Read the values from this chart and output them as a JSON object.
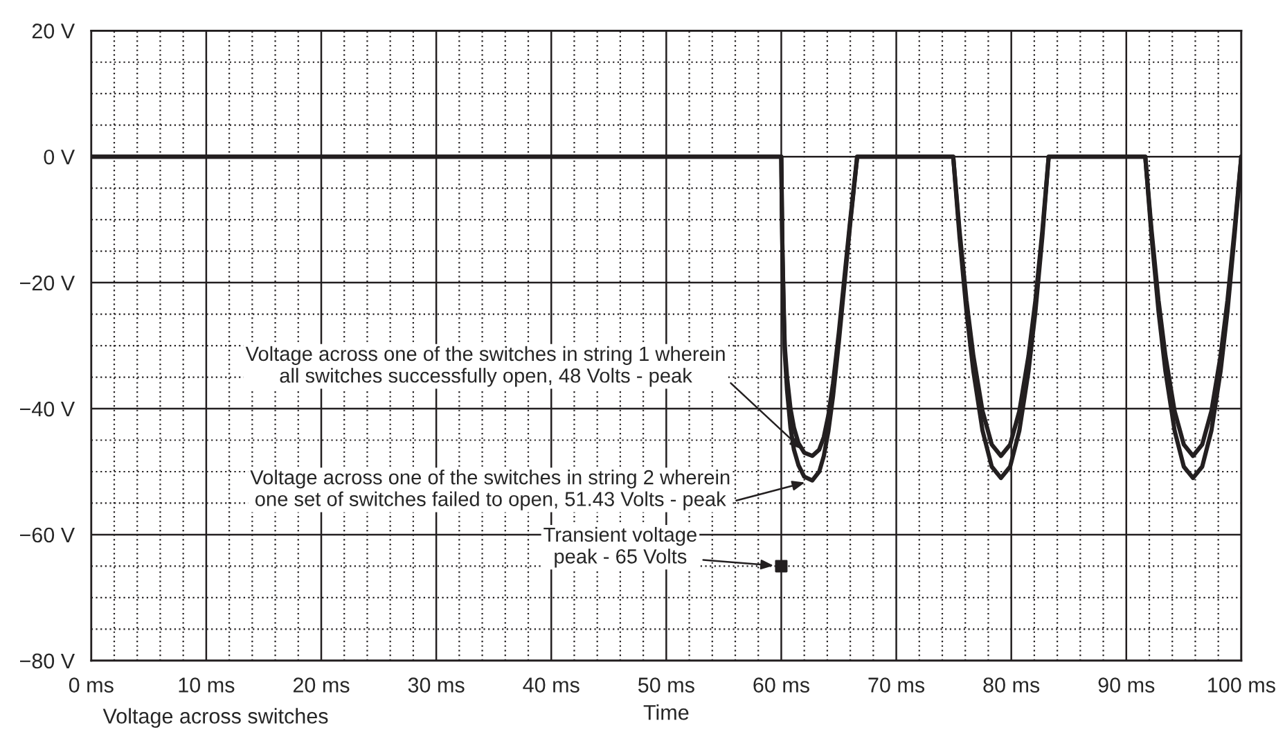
{
  "chart_data": {
    "type": "line",
    "xlabel": "Time",
    "xlim": [
      0,
      100
    ],
    "ylim": [
      -80,
      20
    ],
    "xticks": [
      {
        "value": 0,
        "label": "0 ms"
      },
      {
        "value": 10,
        "label": "10 ms"
      },
      {
        "value": 20,
        "label": "20 ms"
      },
      {
        "value": 30,
        "label": "30 ms"
      },
      {
        "value": 40,
        "label": "40 ms"
      },
      {
        "value": 50,
        "label": "50 ms"
      },
      {
        "value": 60,
        "label": "60 ms"
      },
      {
        "value": 70,
        "label": "70 ms"
      },
      {
        "value": 80,
        "label": "80 ms"
      },
      {
        "value": 90,
        "label": "90 ms"
      },
      {
        "value": 100,
        "label": "100 ms"
      }
    ],
    "yticks": [
      {
        "value": 20,
        "label": "20 V"
      },
      {
        "value": 0,
        "label": "0 V"
      },
      {
        "value": -20,
        "label": "−20 V"
      },
      {
        "value": -40,
        "label": "−40 V"
      },
      {
        "value": -60,
        "label": "−60 V"
      },
      {
        "value": -80,
        "label": "−80 V"
      }
    ],
    "grid": true,
    "legend": false,
    "line_style": "solid",
    "series": [
      {
        "color": "#231f20",
        "x": [
          0,
          60,
          60.05,
          60.1,
          60.2,
          60.3,
          60.5,
          60.8,
          61.1,
          61.5,
          62,
          62.7,
          63.3,
          63.7,
          64.1,
          64.5,
          65,
          65.5,
          66,
          66.6,
          74.95,
          75.5,
          76.1,
          76.7,
          77.5,
          78.3,
          79.1,
          79.9,
          80.7,
          81.5,
          82.1,
          82.7,
          83.25,
          91.65,
          92.2,
          92.8,
          93.4,
          94.2,
          95,
          95.8,
          96.6,
          97.4,
          98.2,
          98.8,
          99.4,
          100
        ],
        "values": [
          0,
          0,
          -8,
          -15,
          -23,
          -30,
          -35,
          -40,
          -43,
          -45.5,
          -47,
          -47.5,
          -46.5,
          -44.5,
          -41,
          -36,
          -28,
          -19,
          -10,
          0,
          0,
          -11.8,
          -22.8,
          -31.6,
          -40.4,
          -45.7,
          -47.5,
          -45.7,
          -40.4,
          -31.6,
          -22.8,
          -11.8,
          0,
          0,
          -11.8,
          -22.8,
          -31.6,
          -40.4,
          -45.7,
          -47.5,
          -45.7,
          -40.4,
          -31.6,
          -22.8,
          -11.8,
          0
        ]
      },
      {
        "color": "#231f20",
        "x": [
          0,
          60,
          60.05,
          60.1,
          60.2,
          60.3,
          60.5,
          60.8,
          61.1,
          61.5,
          62,
          62.7,
          63.3,
          63.7,
          64.1,
          64.5,
          65,
          65.5,
          66,
          66.6,
          74.95,
          75.5,
          76.1,
          76.7,
          77.5,
          78.3,
          79.1,
          79.9,
          80.7,
          81.5,
          82.1,
          82.7,
          83.25,
          91.65,
          92.2,
          92.8,
          93.4,
          94.2,
          95,
          95.8,
          96.6,
          97.4,
          98.2,
          98.8,
          99.4,
          100
        ],
        "values": [
          0,
          0,
          -8,
          -15,
          -24,
          -31,
          -37,
          -43,
          -46.5,
          -49,
          -50.8,
          -51.4,
          -50,
          -47.5,
          -43.5,
          -38,
          -29.5,
          -20,
          -10.5,
          0,
          0,
          -12.7,
          -24.5,
          -34,
          -43.5,
          -49.2,
          -51,
          -49.2,
          -43.5,
          -34,
          -24.5,
          -12.7,
          0,
          0,
          -12.7,
          -24.5,
          -34,
          -43.5,
          -49.2,
          -51,
          -49.2,
          -43.5,
          -34,
          -24.5,
          -12.7,
          0
        ]
      },
      {
        "type": "scatter",
        "color": "#231f20",
        "marker": "square",
        "x": [
          60
        ],
        "values": [
          -65
        ]
      }
    ],
    "annotations": [
      {
        "text": "Voltage across one of the switches in string 1 wherein\nall switches successfully open, 48 Volts - peak",
        "x": 62.3,
        "y": -47.3
      },
      {
        "text": "Voltage across one of the switches in string 2 wherein\none set of switches failed to open, 51.43 Volts - peak",
        "x": 62.7,
        "y": -51.4
      },
      {
        "text": "Transient voltage\npeak - 65 Volts",
        "x": 60,
        "y": -65
      },
      "Voltage across switches"
    ]
  }
}
